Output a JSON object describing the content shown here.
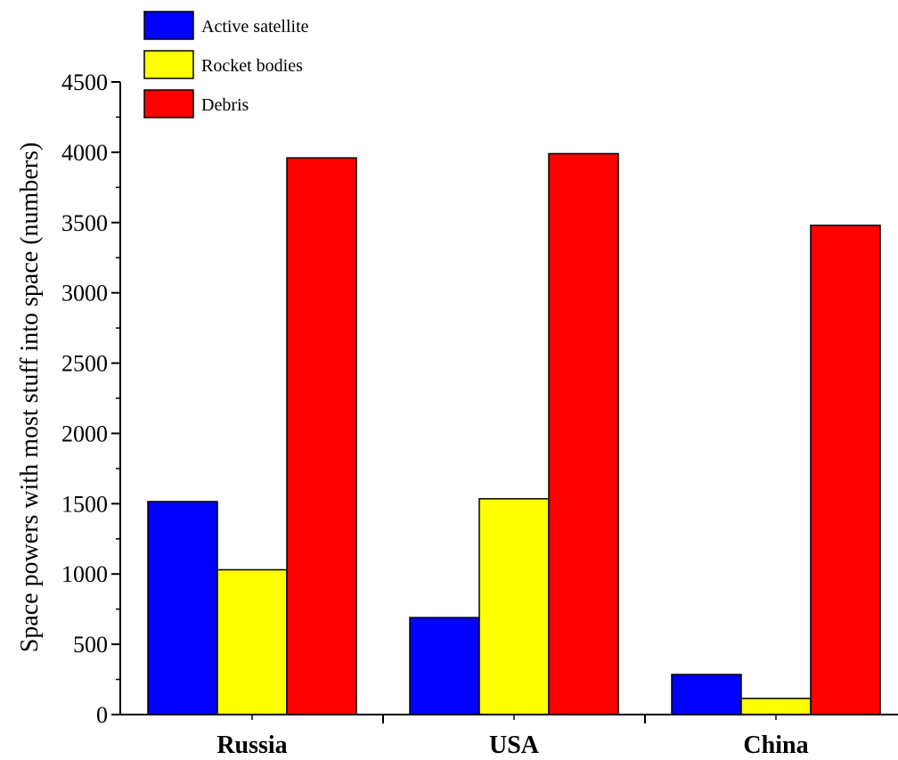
{
  "chart_data": {
    "type": "bar",
    "categories": [
      "Russia",
      "USA",
      "China"
    ],
    "series": [
      {
        "name": "Active satellite",
        "color": "#0000ff",
        "values": [
          1515,
          690,
          285
        ]
      },
      {
        "name": "Rocket bodies",
        "color": "#ffff00",
        "values": [
          1030,
          1535,
          115
        ]
      },
      {
        "name": "Debris",
        "color": "#ff0000",
        "values": [
          3960,
          3990,
          3480
        ]
      }
    ],
    "title": "",
    "xlabel": "",
    "ylabel": "Space powers with most stuff into space (numbers)",
    "ylim": [
      0,
      4500
    ],
    "yticks": [
      "0",
      "500",
      "1000",
      "1500",
      "2000",
      "2500",
      "3000",
      "3500",
      "4000",
      "4500"
    ],
    "grid": false,
    "legend_position": "top-left"
  }
}
